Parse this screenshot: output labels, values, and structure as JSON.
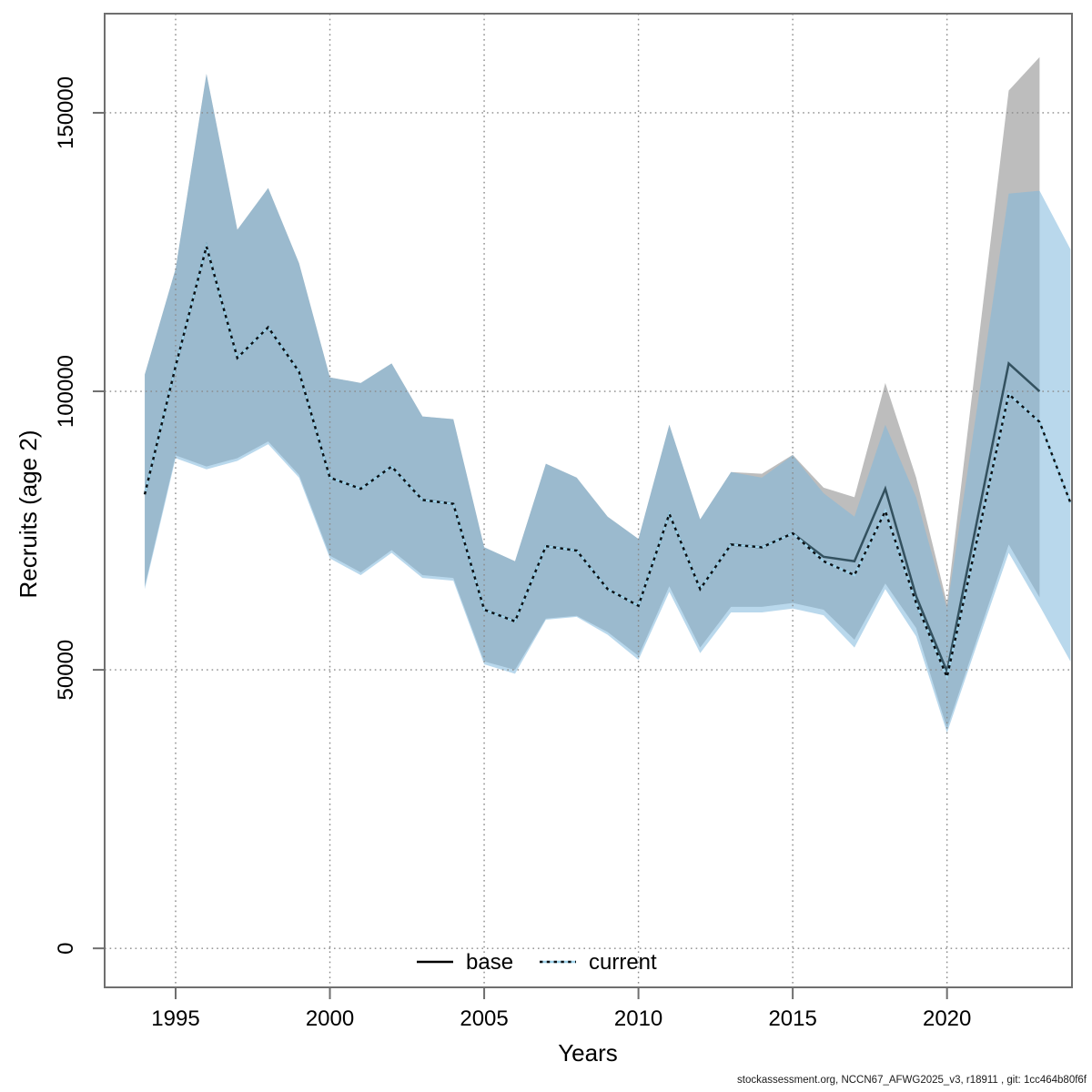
{
  "page": {
    "background": "#ffffff"
  },
  "footer": {
    "text": "stockassessment.org, NCCN67_AFWG2025_v3, r18911 , git: 1cc464b80f6f"
  },
  "chart_data": {
    "type": "line",
    "subtype": "two lines with shaded confidence bands",
    "title": "",
    "xlabel": "Years",
    "ylabel": "Recruits (age 2)",
    "xlim": [
      1992.7,
      2024.05
    ],
    "ylim": [
      -7000,
      167800
    ],
    "grid": "dotted, on",
    "legend_position": "bottom-center-inside",
    "x_ticks": [
      1995,
      2000,
      2005,
      2010,
      2015,
      2020
    ],
    "x_tick_labels": [
      "1995",
      "2000",
      "2005",
      "2010",
      "2015",
      "2020"
    ],
    "y_ticks": [
      0,
      50000,
      100000,
      150000
    ],
    "y_tick_labels": [
      "0",
      "50000",
      "100000",
      "150000"
    ],
    "legend": [
      {
        "label": "base",
        "line_style": "solid"
      },
      {
        "label": "current",
        "line_style": "dotted"
      }
    ],
    "colors": {
      "band_base": "#bdbdbd",
      "band_current": "#7fb8dc",
      "band_current_opacity": 0.55,
      "line_base": "#33515f",
      "line_base_legend": "#000000",
      "line_current_under": "#9ed2ea",
      "line_current_dash": "#0b1014",
      "grid": "#8a8a8a",
      "axis": "#6f6f6f"
    },
    "series": [
      {
        "name": "base",
        "years": [
          1994,
          1995,
          1996,
          1997,
          1998,
          1999,
          2000,
          2001,
          2002,
          2003,
          2004,
          2005,
          2006,
          2007,
          2008,
          2009,
          2010,
          2011,
          2012,
          2013,
          2014,
          2015,
          2016,
          2017,
          2018,
          2019,
          2020,
          2021,
          2022,
          2023
        ],
        "mid": [
          81500,
          104500,
          126000,
          106000,
          111500,
          103500,
          84500,
          82500,
          86500,
          80500,
          79800,
          60800,
          58700,
          72200,
          71400,
          64500,
          61500,
          78000,
          64500,
          72500,
          72000,
          74500,
          70300,
          69500,
          82500,
          63200,
          49700,
          77500,
          105000,
          100000
        ],
        "hi": [
          103000,
          122000,
          157000,
          129000,
          136500,
          123000,
          102500,
          101500,
          105000,
          95500,
          95000,
          72000,
          69500,
          87000,
          84500,
          77500,
          73500,
          94000,
          77000,
          85500,
          85200,
          88600,
          82700,
          81000,
          101500,
          84500,
          62000,
          108000,
          154000,
          160000
        ],
        "lo": [
          65000,
          88500,
          86500,
          88000,
          91000,
          85000,
          70500,
          67500,
          71500,
          67000,
          66500,
          51500,
          50000,
          59200,
          59700,
          56800,
          52500,
          65000,
          54000,
          61300,
          61300,
          62000,
          60800,
          55400,
          65500,
          57500,
          39500,
          56000,
          72500,
          63000
        ]
      },
      {
        "name": "current",
        "years": [
          1994,
          1995,
          1996,
          1997,
          1998,
          1999,
          2000,
          2001,
          2002,
          2003,
          2004,
          2005,
          2006,
          2007,
          2008,
          2009,
          2010,
          2011,
          2012,
          2013,
          2014,
          2015,
          2016,
          2017,
          2018,
          2019,
          2020,
          2021,
          2022,
          2023,
          2024
        ],
        "mid": [
          81500,
          104500,
          126000,
          106000,
          111500,
          103500,
          84500,
          82500,
          86500,
          80500,
          79800,
          60800,
          58700,
          72200,
          71400,
          64500,
          61500,
          78000,
          64500,
          72500,
          72000,
          74500,
          69500,
          67000,
          78500,
          62000,
          48700,
          74000,
          99500,
          94500,
          80000
        ],
        "hi": [
          103000,
          122000,
          157000,
          129000,
          136500,
          123000,
          102500,
          101500,
          105000,
          95500,
          95000,
          72000,
          69500,
          87000,
          84500,
          77500,
          73500,
          94000,
          77000,
          85500,
          84500,
          88500,
          81700,
          77500,
          94000,
          81000,
          61000,
          98000,
          135500,
          136000,
          125500
        ],
        "lo": [
          64500,
          88000,
          86000,
          87500,
          90500,
          84500,
          70000,
          67000,
          71000,
          66500,
          66000,
          51000,
          49300,
          59000,
          59500,
          56300,
          51800,
          64000,
          53000,
          60300,
          60300,
          61000,
          59800,
          54000,
          64500,
          56000,
          38700,
          55000,
          71000,
          61500,
          51500
        ]
      }
    ]
  }
}
